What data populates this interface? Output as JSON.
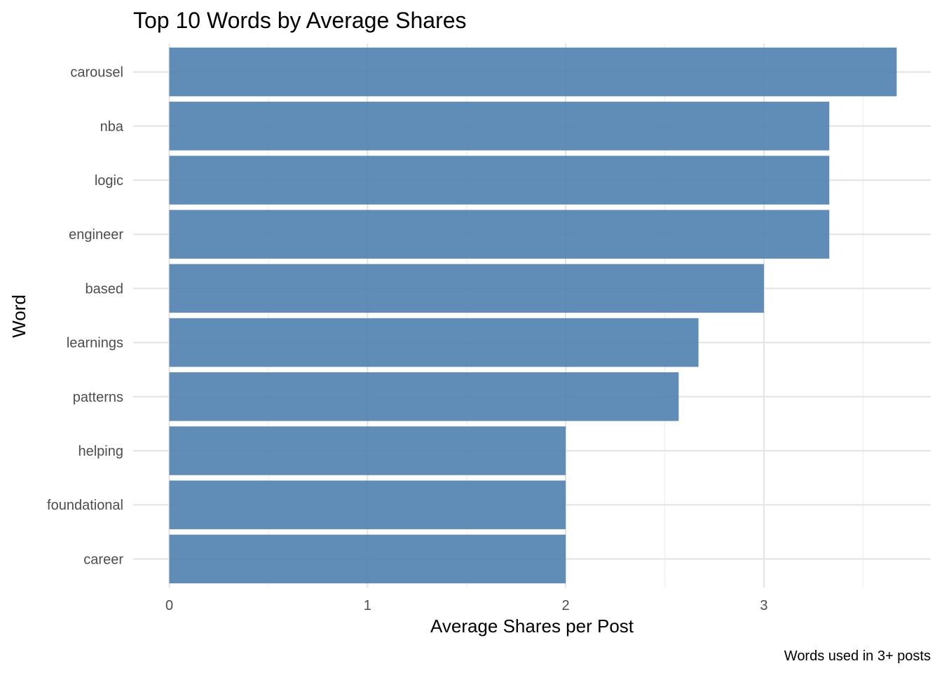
{
  "chart_data": {
    "type": "bar",
    "orientation": "horizontal",
    "title": "Top 10 Words by Average Shares",
    "xlabel": "Average Shares per Post",
    "ylabel": "Word",
    "caption": "Words used in 3+ posts",
    "categories": [
      "carousel",
      "nba",
      "logic",
      "engineer",
      "based",
      "learnings",
      "patterns",
      "helping",
      "foundational",
      "career"
    ],
    "values": [
      3.67,
      3.33,
      3.33,
      3.33,
      3.0,
      2.67,
      2.57,
      2.0,
      2.0,
      2.0
    ],
    "xlim": [
      0,
      3.83
    ],
    "xticks": [
      0,
      1,
      2,
      3
    ],
    "grid": true,
    "legend": "none",
    "bar_color": "#4f7fb0"
  }
}
